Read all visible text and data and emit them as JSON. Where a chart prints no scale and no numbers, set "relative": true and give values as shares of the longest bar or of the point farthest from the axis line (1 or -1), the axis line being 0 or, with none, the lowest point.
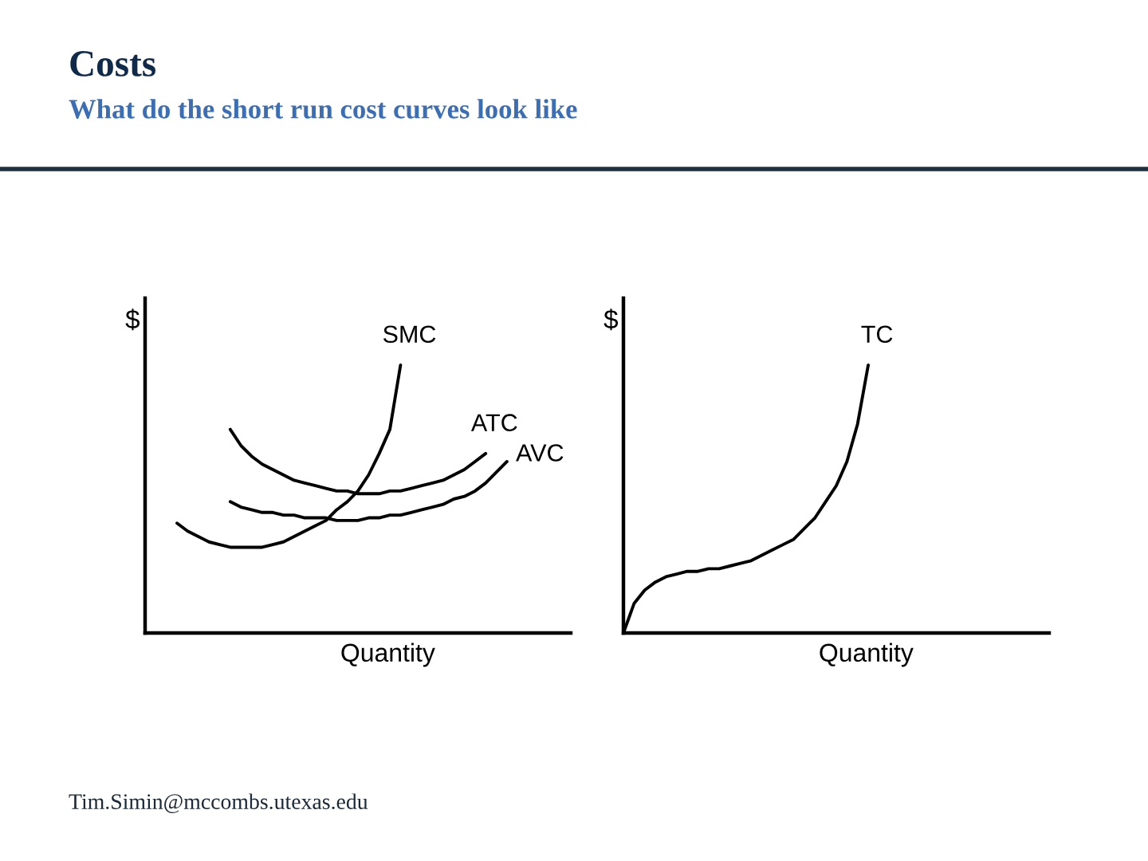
{
  "chart_data": [
    {
      "type": "line",
      "title": "Costs",
      "subtitle": "What do the short run cost curves look like",
      "xlabel": "Quantity",
      "ylabel": "$",
      "relative": true,
      "tick_labels": false,
      "line_style": "solid",
      "annotations": [
        "Tim.Simin@mccombs.utexas.edu"
      ],
      "categories": [
        null,
        null,
        null,
        null,
        null,
        null,
        null,
        null,
        null,
        null,
        null,
        null,
        null,
        null,
        null,
        null,
        null,
        null,
        null,
        null,
        null,
        null,
        null,
        null,
        null,
        null,
        null,
        null,
        null,
        null,
        null,
        null,
        null,
        null,
        null,
        null,
        null,
        null,
        null,
        null,
        null
      ],
      "series": [
        {
          "name": "SMC",
          "color": "#000000",
          "values": [
            null,
            null,
            null,
            0.41,
            0.38,
            0.36,
            0.34,
            0.33,
            0.32,
            0.32,
            0.32,
            0.32,
            0.33,
            0.34,
            0.36,
            0.38,
            0.4,
            0.42,
            0.46,
            0.49,
            0.53,
            0.59,
            0.67,
            0.76,
            1.0,
            null,
            null,
            null,
            null,
            null,
            null,
            null,
            null,
            null,
            null,
            null,
            null,
            null,
            null,
            null,
            null
          ]
        },
        {
          "name": "ATC",
          "color": "#000000",
          "values": [
            null,
            null,
            null,
            null,
            null,
            null,
            null,
            null,
            0.76,
            0.7,
            0.66,
            0.63,
            0.61,
            0.59,
            0.57,
            0.56,
            0.55,
            0.54,
            0.53,
            0.53,
            0.52,
            0.52,
            0.52,
            0.53,
            0.53,
            0.54,
            0.55,
            0.56,
            0.57,
            0.59,
            0.61,
            0.64,
            0.67,
            null,
            null,
            null,
            null,
            null,
            null,
            null,
            null
          ]
        },
        {
          "name": "AVC",
          "color": "#000000",
          "values": [
            null,
            null,
            null,
            null,
            null,
            null,
            null,
            null,
            0.49,
            0.47,
            0.46,
            0.45,
            0.45,
            0.44,
            0.44,
            0.43,
            0.43,
            0.43,
            0.42,
            0.42,
            0.42,
            0.43,
            0.43,
            0.44,
            0.44,
            0.45,
            0.46,
            0.47,
            0.48,
            0.5,
            0.51,
            0.53,
            0.56,
            0.6,
            0.64,
            null,
            null,
            null,
            null,
            null,
            null
          ]
        }
      ]
    },
    {
      "type": "line",
      "xlabel": "Quantity",
      "ylabel": "$",
      "relative": true,
      "tick_labels": false,
      "line_style": "solid",
      "categories": [
        null,
        null,
        null,
        null,
        null,
        null,
        null,
        null,
        null,
        null,
        null,
        null,
        null,
        null,
        null,
        null,
        null,
        null,
        null,
        null,
        null,
        null,
        null,
        null,
        null,
        null,
        null,
        null,
        null,
        null,
        null,
        null,
        null,
        null,
        null,
        null,
        null,
        null,
        null,
        null,
        null
      ],
      "series": [
        {
          "name": "TC",
          "color": "#000000",
          "values": [
            0,
            0.11,
            0.16,
            0.19,
            0.21,
            0.22,
            0.23,
            0.23,
            0.24,
            0.24,
            0.25,
            0.26,
            0.27,
            0.29,
            0.31,
            0.33,
            0.35,
            0.39,
            0.43,
            0.49,
            0.55,
            0.64,
            0.78,
            1.0,
            null,
            null,
            null,
            null,
            null,
            null,
            null,
            null,
            null,
            null,
            null,
            null,
            null,
            null,
            null,
            null,
            null
          ]
        }
      ]
    }
  ]
}
